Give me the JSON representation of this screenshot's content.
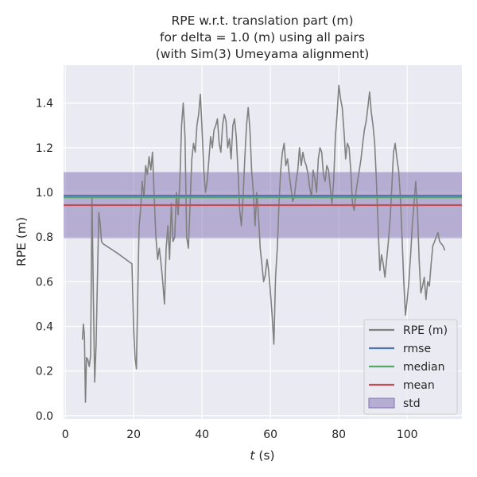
{
  "chart_data": {
    "type": "line",
    "title_lines": [
      "RPE w.r.t. translation part (m)",
      "for delta = 1.0 (m) using all pairs",
      "(with Sim(3) Umeyama alignment)"
    ],
    "xlabel_italic": "t",
    "xlabel_rest": " (s)",
    "ylabel": "RPE (m)",
    "xlim": [
      -0.5,
      116
    ],
    "ylim": [
      -0.015,
      1.57
    ],
    "xticks": [
      0,
      20,
      40,
      60,
      80,
      100
    ],
    "yticks": [
      0.0,
      0.2,
      0.4,
      0.6,
      0.8,
      1.0,
      1.2,
      1.4
    ],
    "ytick_labels": [
      "0.0",
      "0.2",
      "0.4",
      "0.6",
      "0.8",
      "1.0",
      "1.2",
      "1.4"
    ],
    "grid": true,
    "legend_position": "lower-right",
    "legend": [
      {
        "label": "RPE (m)",
        "kind": "line",
        "color": "#808080"
      },
      {
        "label": "rmse",
        "kind": "line",
        "color": "#4c72b0"
      },
      {
        "label": "median",
        "kind": "line",
        "color": "#55a868"
      },
      {
        "label": "mean",
        "kind": "line",
        "color": "#c44e52"
      },
      {
        "label": "std",
        "kind": "patch",
        "color": "#8172b2"
      }
    ],
    "stats": {
      "rmse": 0.985,
      "median": 0.978,
      "mean": 0.943,
      "std": 0.148
    },
    "series": [
      {
        "name": "RPE (m)",
        "color": "#808080",
        "x": [
          5.0,
          5.3,
          5.6,
          5.9,
          6.2,
          6.6,
          7.0,
          7.4,
          7.8,
          8.2,
          8.6,
          9.0,
          9.4,
          9.8,
          10.2,
          10.6,
          11.0,
          15.0,
          19.5,
          20.0,
          20.4,
          20.8,
          21.2,
          21.6,
          22.0,
          22.5,
          23.0,
          23.5,
          24.0,
          24.5,
          25.0,
          25.5,
          26.0,
          26.5,
          27.0,
          27.5,
          28.0,
          28.5,
          29.0,
          29.5,
          30.0,
          30.5,
          31.0,
          31.5,
          32.0,
          32.5,
          33.0,
          33.5,
          34.0,
          34.5,
          35.0,
          35.5,
          36.0,
          36.5,
          37.0,
          37.5,
          38.0,
          38.5,
          39.0,
          39.5,
          40.0,
          40.5,
          41.0,
          41.5,
          42.0,
          42.5,
          43.0,
          43.5,
          44.0,
          44.5,
          45.0,
          45.5,
          46.0,
          46.5,
          47.0,
          47.5,
          48.0,
          48.5,
          49.0,
          49.5,
          50.0,
          50.5,
          51.0,
          51.5,
          52.0,
          52.5,
          53.0,
          53.5,
          54.0,
          54.5,
          55.0,
          55.5,
          56.0,
          56.5,
          57.0,
          57.5,
          58.0,
          58.5,
          59.0,
          59.5,
          60.0,
          60.5,
          61.0,
          61.5,
          62.0,
          62.5,
          63.0,
          63.5,
          64.0,
          64.5,
          65.0,
          65.5,
          66.0,
          66.5,
          67.0,
          67.5,
          68.0,
          68.5,
          69.0,
          69.5,
          70.0,
          70.5,
          71.0,
          71.5,
          72.0,
          72.5,
          73.0,
          73.5,
          74.0,
          74.5,
          75.0,
          75.5,
          76.0,
          76.5,
          77.0,
          77.5,
          78.0,
          78.5,
          79.0,
          79.5,
          80.0,
          80.5,
          81.0,
          81.5,
          82.0,
          82.5,
          83.0,
          83.5,
          84.0,
          84.5,
          85.0,
          85.5,
          86.0,
          86.5,
          87.0,
          87.5,
          88.0,
          88.5,
          89.0,
          89.5,
          90.0,
          90.5,
          91.0,
          91.5,
          92.0,
          92.5,
          93.0,
          93.5,
          94.0,
          94.5,
          95.0,
          95.5,
          96.0,
          96.5,
          97.0,
          97.5,
          98.0,
          98.5,
          99.0,
          99.5,
          100.0,
          100.5,
          101.0,
          101.5,
          102.0,
          102.5,
          103.0,
          103.5,
          104.0,
          104.5,
          105.0,
          105.5,
          106.0,
          106.5,
          107.0,
          107.5,
          108.0,
          108.5,
          109.0,
          109.5,
          110.0,
          110.5,
          111.0
        ],
        "y": [
          0.34,
          0.41,
          0.36,
          0.06,
          0.26,
          0.25,
          0.22,
          0.27,
          0.98,
          0.55,
          0.15,
          0.32,
          0.62,
          0.91,
          0.86,
          0.78,
          0.77,
          0.73,
          0.68,
          0.38,
          0.26,
          0.21,
          0.55,
          0.85,
          0.92,
          1.05,
          0.98,
          1.12,
          1.08,
          1.16,
          1.1,
          1.18,
          0.98,
          0.8,
          0.7,
          0.75,
          0.68,
          0.6,
          0.5,
          0.75,
          0.85,
          0.7,
          0.95,
          0.78,
          0.8,
          1.0,
          0.9,
          1.05,
          1.3,
          1.4,
          1.25,
          0.8,
          0.75,
          0.95,
          1.15,
          1.22,
          1.18,
          1.3,
          1.35,
          1.44,
          1.28,
          1.1,
          1.0,
          1.05,
          1.15,
          1.25,
          1.2,
          1.28,
          1.3,
          1.33,
          1.22,
          1.18,
          1.3,
          1.35,
          1.32,
          1.2,
          1.24,
          1.15,
          1.3,
          1.33,
          1.25,
          1.1,
          0.92,
          0.85,
          0.98,
          1.15,
          1.3,
          1.38,
          1.28,
          1.1,
          1.0,
          0.85,
          1.0,
          0.9,
          0.75,
          0.68,
          0.6,
          0.63,
          0.7,
          0.65,
          0.55,
          0.45,
          0.32,
          0.62,
          0.75,
          0.95,
          1.1,
          1.18,
          1.22,
          1.12,
          1.15,
          1.08,
          1.02,
          0.96,
          0.98,
          1.05,
          1.1,
          1.2,
          1.12,
          1.18,
          1.14,
          1.12,
          1.08,
          1.02,
          0.98,
          1.1,
          1.06,
          1.0,
          1.15,
          1.2,
          1.18,
          1.08,
          1.05,
          1.12,
          1.1,
          1.02,
          0.95,
          1.05,
          1.25,
          1.35,
          1.48,
          1.42,
          1.38,
          1.28,
          1.15,
          1.22,
          1.2,
          1.1,
          0.95,
          0.92,
          1.0,
          1.05,
          1.1,
          1.15,
          1.22,
          1.28,
          1.32,
          1.38,
          1.45,
          1.36,
          1.3,
          1.22,
          1.05,
          0.85,
          0.65,
          0.72,
          0.68,
          0.62,
          0.7,
          0.78,
          0.88,
          1.02,
          1.18,
          1.22,
          1.15,
          1.1,
          0.98,
          0.8,
          0.6,
          0.45,
          0.52,
          0.6,
          0.72,
          0.85,
          0.95,
          1.05,
          0.92,
          0.7,
          0.55,
          0.58,
          0.62,
          0.52,
          0.6,
          0.58,
          0.68,
          0.76,
          0.78,
          0.8,
          0.82,
          0.78,
          0.77,
          0.76,
          0.74
        ]
      }
    ]
  }
}
